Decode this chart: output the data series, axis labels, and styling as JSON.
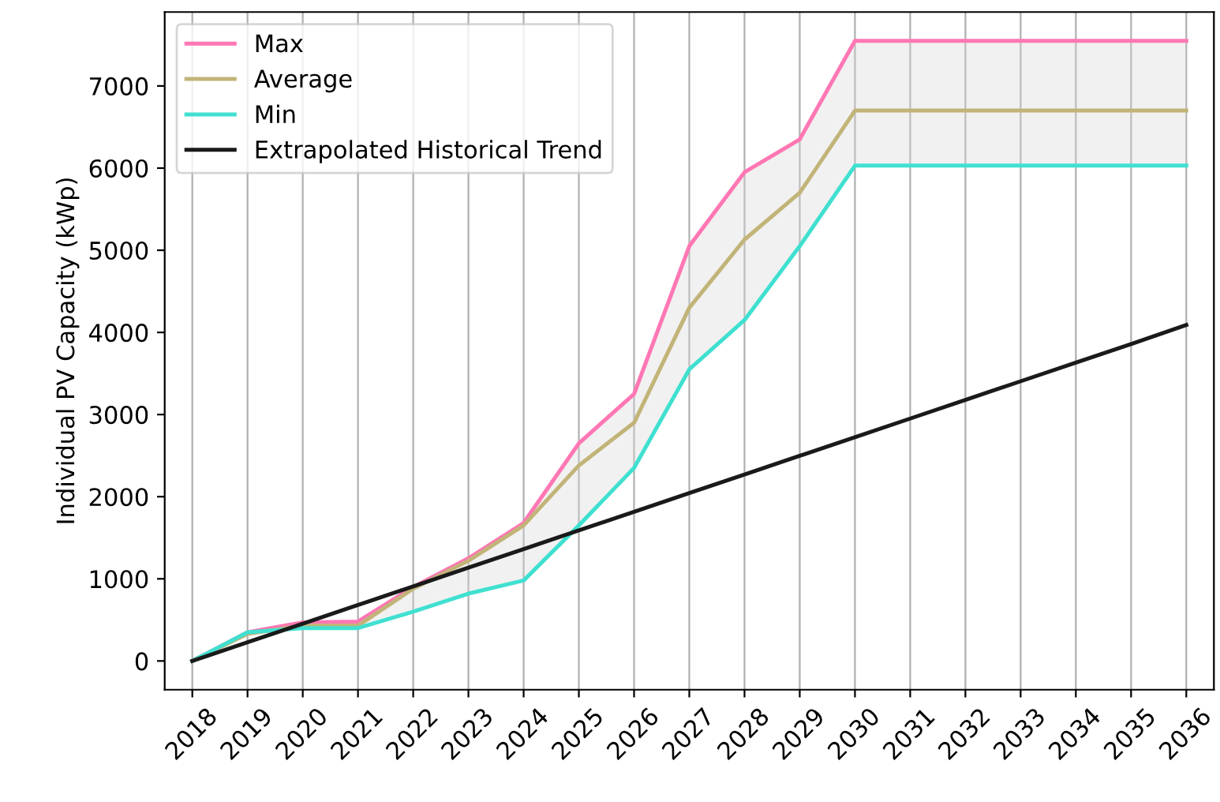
{
  "chart_data": {
    "type": "line",
    "ylabel": "Individual PV Capacity (kWp)",
    "categories": [
      "2018",
      "2019",
      "2020",
      "2021",
      "2022",
      "2023",
      "2024",
      "2025",
      "2026",
      "2027",
      "2028",
      "2029",
      "2030",
      "2031",
      "2032",
      "2033",
      "2034",
      "2035",
      "2036"
    ],
    "series": [
      {
        "name": "Max",
        "color": "#ff77b4",
        "values": [
          0,
          350,
          470,
          480,
          900,
          1250,
          1680,
          2650,
          3250,
          5050,
          5950,
          6350,
          7550,
          7550,
          7550,
          7550,
          7550,
          7550,
          7550
        ]
      },
      {
        "name": "Average",
        "color": "#c2b478",
        "values": [
          0,
          330,
          430,
          430,
          880,
          1220,
          1650,
          2380,
          2900,
          4300,
          5130,
          5700,
          6700,
          6700,
          6700,
          6700,
          6700,
          6700,
          6700
        ],
        "lower": [
          0,
          350,
          400,
          400,
          600,
          820,
          980,
          1650,
          2350,
          3550,
          4150,
          5050,
          6030,
          6030,
          6030,
          6030,
          6030,
          6030,
          6030
        ],
        "upper": [
          0,
          350,
          470,
          480,
          900,
          1250,
          1680,
          2650,
          3250,
          5050,
          5950,
          6350,
          7550,
          7550,
          7550,
          7550,
          7550,
          7550,
          7550
        ]
      },
      {
        "name": "Min",
        "color": "#40e0d0",
        "values": [
          0,
          350,
          400,
          400,
          600,
          820,
          980,
          1650,
          2350,
          3550,
          4150,
          5050,
          6030,
          6030,
          6030,
          6030,
          6030,
          6030,
          6030
        ]
      },
      {
        "name": "Extrapolated Historical Trend",
        "color": "#1a1a1a",
        "values": [
          0,
          227,
          454,
          681,
          908,
          1135,
          1362,
          1589,
          1816,
          2043,
          2270,
          2497,
          2724,
          2951,
          3178,
          3405,
          3632,
          3859,
          4090
        ]
      }
    ],
    "ylim": [
      -350,
      7900
    ],
    "yticks": [
      0,
      1000,
      2000,
      3000,
      4000,
      5000,
      6000,
      7000
    ],
    "grid": "x",
    "legend": "top left",
    "line_style": "solid",
    "marker": "none"
  }
}
